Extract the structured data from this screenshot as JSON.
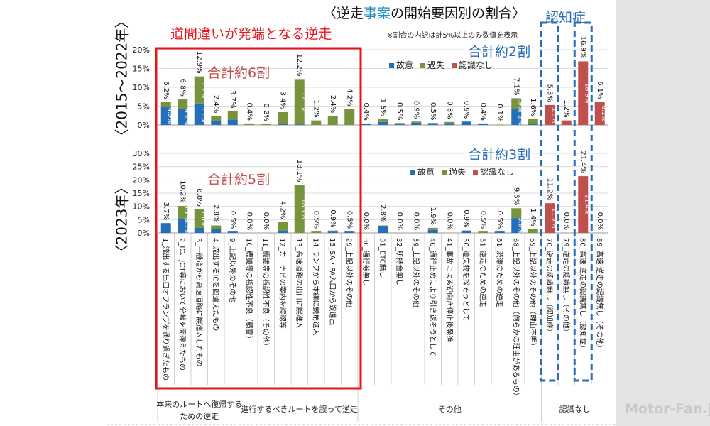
{
  "title": {
    "prefix": "〈逆走",
    "highlight": "事案",
    "suffix": "の開始要因別の割合〉"
  },
  "annotations": {
    "misguided_reverse": "道間違いが発端となる逆走",
    "note": "※割合の内訳は計5%以上のみ数値を表示",
    "dementia": "認知症",
    "top_red_total": "合計約6割",
    "bottom_red_total": "合計約5割",
    "top_blue_total": "合計約2割",
    "bottom_blue_total": "合計約3割"
  },
  "watermark": "Motor-Fan.jp",
  "colors": {
    "故意": "#2470b8",
    "過失": "#77933c",
    "認識なし": "#c0504d",
    "red_box": "#e8141c",
    "blue_box": "#2a6db5"
  },
  "chart_data": [
    {
      "type": "bar",
      "stacked": true,
      "period_label": "〈2015～2022年〉",
      "ylim": [
        0,
        20
      ],
      "yticks": [
        "0%",
        "5%",
        "10%",
        "15%",
        "20%"
      ],
      "legend": [
        "故意",
        "過失",
        "認識なし"
      ],
      "series": [
        {
          "name": "故意",
          "values": [
            4.9,
            4.2,
            5.7,
            1.1,
            1.4,
            0,
            0,
            0.2,
            0.1,
            0,
            0,
            0,
            0.3,
            0.8,
            0.4,
            0.6,
            0.5,
            0.5,
            0.9,
            0.4,
            0,
            4.2,
            0.3,
            0,
            0,
            0,
            0
          ]
        },
        {
          "name": "過失",
          "values": [
            1.2,
            2.6,
            7.2,
            1.3,
            2.3,
            0.4,
            0.2,
            3.2,
            12.1,
            1.2,
            2.4,
            4.2,
            0.1,
            0.7,
            0.1,
            0.3,
            0,
            0.3,
            0,
            0,
            0.1,
            2.9,
            1.3,
            0,
            0,
            0,
            0
          ]
        },
        {
          "name": "認識なし",
          "values": [
            0,
            0,
            0,
            0,
            0,
            0,
            0,
            0,
            0,
            0,
            0,
            0,
            0,
            0,
            0,
            0,
            0,
            0,
            0,
            0,
            0,
            0,
            0,
            5.3,
            1.2,
            16.9,
            6.1
          ]
        }
      ],
      "totals": [
        "6.2%",
        "6.8%",
        "12.9%",
        "2.4%",
        "3.7%",
        "0.4%",
        "0.2%",
        "3.4%",
        "12.2%",
        "1.2%",
        "2.4%",
        "4.2%",
        "0.4%",
        "1.5%",
        "0.5%",
        "0.9%",
        "0.5%",
        "0.8%",
        "0.9%",
        "0.4%",
        "0.1%",
        "7.1%",
        "1.6%",
        "5.3%",
        "1.2%",
        "16.9%",
        "6.1%"
      ]
    },
    {
      "type": "bar",
      "stacked": true,
      "period_label": "〈2023年〉",
      "ylim": [
        0,
        30
      ],
      "yticks": [
        "0%",
        "5%",
        "10%",
        "15%",
        "20%",
        "25%",
        "30%"
      ],
      "legend": [
        "故意",
        "過失",
        "認識なし"
      ],
      "series": [
        {
          "name": "故意",
          "values": [
            3.7,
            5.1,
            1.9,
            1.4,
            0.5,
            0,
            0,
            0.9,
            0,
            0,
            0.5,
            0.5,
            0,
            2.4,
            0,
            0,
            1.1,
            0,
            0.9,
            0,
            0.5,
            5.6,
            0,
            0,
            0,
            0,
            0
          ]
        },
        {
          "name": "過失",
          "values": [
            0,
            5.1,
            7.0,
            1.4,
            0,
            0,
            0,
            3.3,
            18.1,
            0.5,
            0.4,
            0,
            0,
            0.4,
            0,
            0,
            0.8,
            0,
            0,
            0.5,
            0,
            3.7,
            1.4,
            0,
            0,
            0,
            0
          ]
        },
        {
          "name": "認識なし",
          "values": [
            0,
            0,
            0,
            0,
            0,
            0,
            0,
            0,
            0,
            0,
            0,
            0,
            0,
            0,
            0,
            0,
            0,
            0,
            0,
            0,
            0,
            0,
            0,
            11.2,
            0,
            21.4,
            0
          ]
        }
      ],
      "totals": [
        "3.7%",
        "10.2%",
        "8.8%",
        "2.8%",
        "0.5%",
        "0.0%",
        "0.0%",
        "4.2%",
        "18.1%",
        "0.5%",
        "0.9%",
        "0.5%",
        "0.0%",
        "2.8%",
        "0.0%",
        "0.0%",
        "1.9%",
        "0.0%",
        "0.9%",
        "0.5%",
        "0.5%",
        "9.3%",
        "1.4%",
        "11.2%",
        "0.0%",
        "21.4%",
        "0.0%"
      ]
    }
  ],
  "categories": [
    "1_流出する出口オフランプを通り過ぎたもの",
    "2_IC、JCT等において分岐を間違えたもの",
    "3_一般道から高速道路に誤進入したもの",
    "4_流出するICを間違えたもの",
    "9_上記以外のその他",
    "10_標識等の視認性不良（積雪）",
    "11_標識等の視認性不良（その他）",
    "12_カーナビの案内を誤認等",
    "13_高速道路の出口に誤進入",
    "14_ランプから本線に鋭角進入",
    "15_SA・PA入口から誤進出",
    "29_上記以外のその他",
    "30_通行券無し",
    "31_ETC無し",
    "32_所持金無し",
    "39_上記以外のその他",
    "40_通行止めにより引き返そうとして",
    "41_事故による逆向き停止後発進",
    "50_遺失物を探そうとして",
    "51_逆走のための逆走",
    "61_渋滞のための逆走",
    "68_上記以外のその他（何らかの理由があるもの）",
    "69_上記以外のその他（理由不明）",
    "70_逆走の認識無し（認知症）",
    "79_逆走の認識無し（その他）",
    "80_高速 逆走の認識無し（認知症）",
    "89_高速 逆走の認識無し（その他）"
  ],
  "groups": [
    {
      "label_line1": "本来のルートへ復帰する",
      "label_line2": "ための逆走",
      "count": 5
    },
    {
      "label_line1": "進行するべきルートを誤って逆走",
      "label_line2": "",
      "count": 7
    },
    {
      "label_line1": "その他",
      "label_line2": "",
      "count": 11
    },
    {
      "label_line1": "認識なし",
      "label_line2": "",
      "count": 4
    }
  ]
}
